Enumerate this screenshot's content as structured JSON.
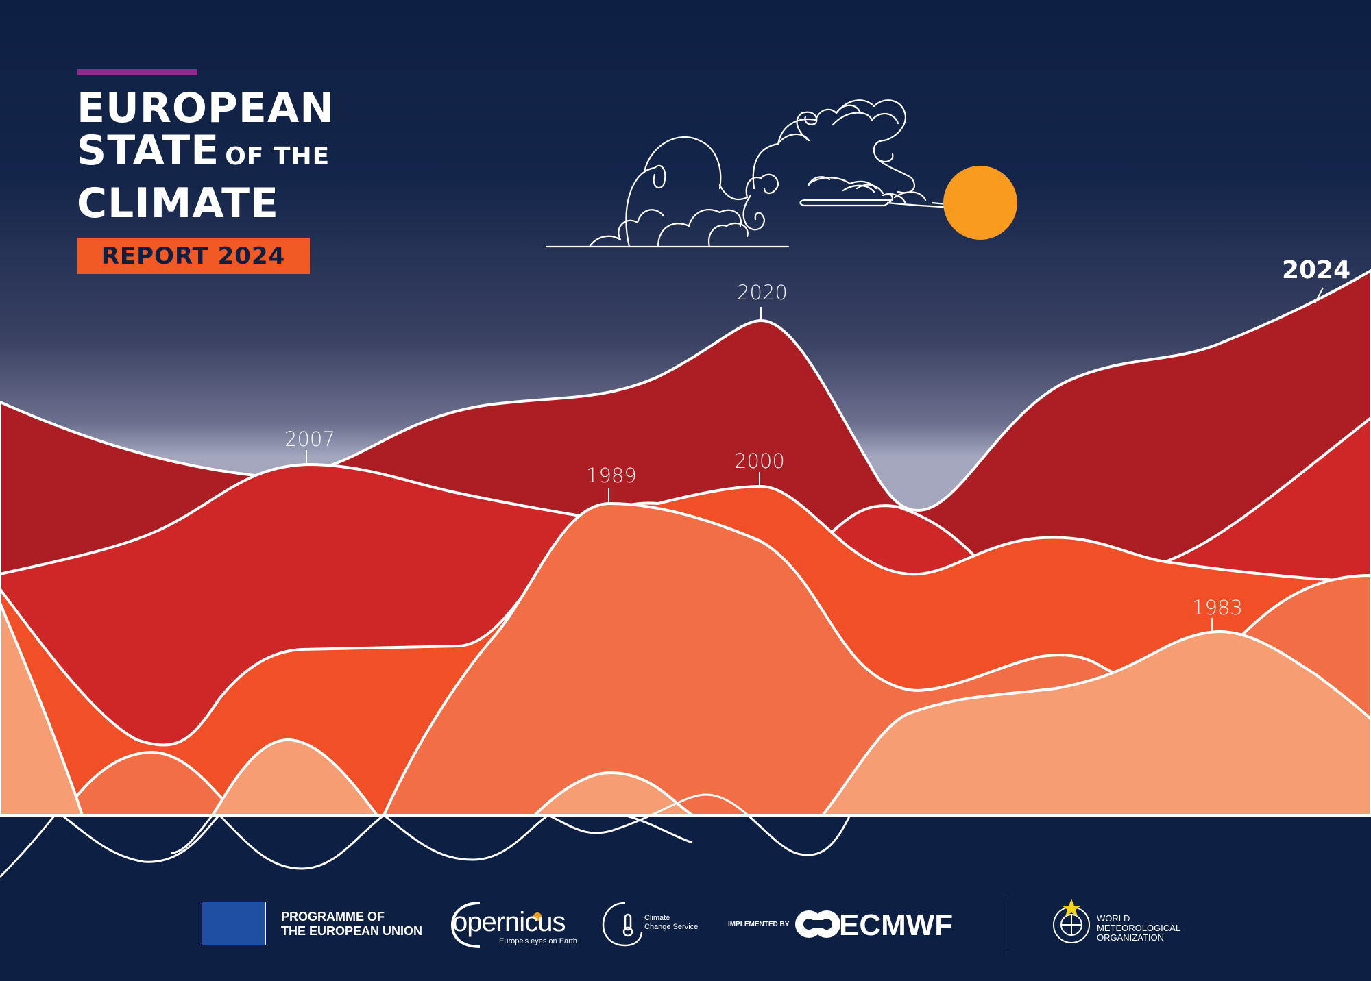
{
  "title": {
    "line1": "EUROPEAN",
    "line2_big": "STATE",
    "line2_small": "OF THE",
    "line3": "CLIMATE",
    "badge": "REPORT 2024"
  },
  "year_labels": {
    "y2024": "2024",
    "y2020": "2020",
    "y2007": "2007",
    "y1989": "1989",
    "y2000": "2000",
    "y1983": "1983"
  },
  "footer": {
    "eu_line1": "PROGRAMME OF",
    "eu_line2": "THE EUROPEAN UNION",
    "copernicus": "opernicus",
    "copernicus_tagline": "Europe's eyes on Earth",
    "c3s_line1": "Climate",
    "c3s_line2": "Change Service",
    "implemented_by": "IMPLEMENTED BY",
    "ecmwf": "ECMWF",
    "wmo_line1": "WORLD",
    "wmo_line2": "METEOROLOGICAL",
    "wmo_line3": "ORGANIZATION"
  },
  "colors": {
    "navy": "#0d1f42",
    "sky_light": "#9ea1b9",
    "dark_red": "#ad1e24",
    "red": "#cf2627",
    "orange_red": "#f04f27",
    "orange": "#f26e46",
    "peach": "#f69d73",
    "sun": "#f89a1e",
    "accent_purple": "#8e2c8e",
    "badge_orange": "#f15a24"
  }
}
